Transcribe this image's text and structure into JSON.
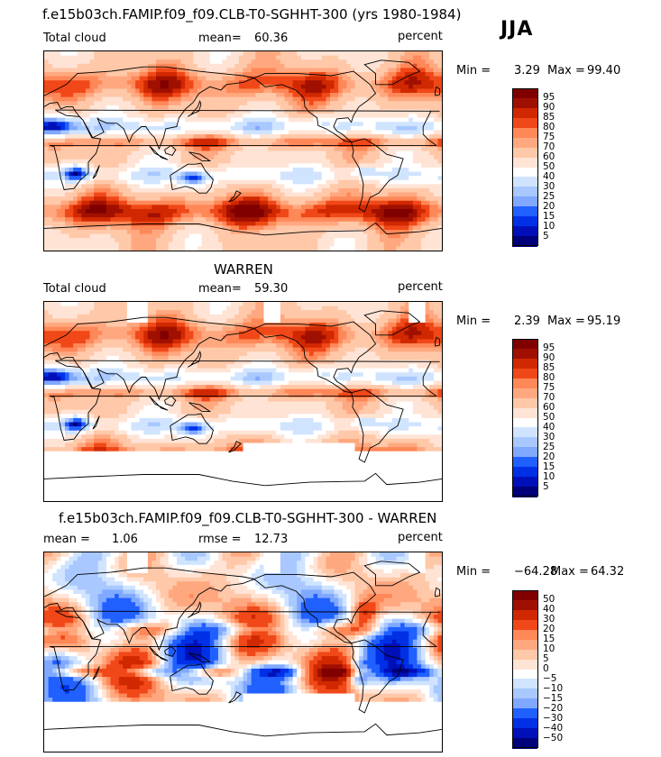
{
  "season": "JJA",
  "colors": {
    "abs_scale": [
      "#00007a",
      "#0010b8",
      "#0030e6",
      "#2060ff",
      "#5080ff",
      "#80a8ff",
      "#a8c8ff",
      "#d0e4ff",
      "#ffffff",
      "#ffe4d6",
      "#ffc8a8",
      "#ffa880",
      "#ff8858",
      "#ff6a38",
      "#f04818",
      "#d02800",
      "#a01000",
      "#800000"
    ],
    "diff_scale": [
      "#00007a",
      "#0010b8",
      "#0030e6",
      "#2060ff",
      "#5080ff",
      "#80a8ff",
      "#a8c8ff",
      "#d0e4ff",
      "#ffffff",
      "#ffe4d6",
      "#ffc8a8",
      "#ffa880",
      "#ff8858",
      "#ff6a38",
      "#f04818",
      "#d02800",
      "#a01000",
      "#800000"
    ]
  },
  "panels": [
    {
      "title": "f.e15b03ch.FAMIP.f09_f09.CLB-T0-SGHHT-300 (yrs 1980-1984)",
      "left_label": "Total cloud",
      "stat_label": "mean=",
      "stat_value": "60.36",
      "unit": "percent",
      "min_label": "Min =",
      "min_value": "3.29",
      "max_label": "Max =",
      "max_value": "99.40",
      "ticks": [
        "95",
        "90",
        "85",
        "80",
        "75",
        "70",
        "60",
        "50",
        "40",
        "30",
        "25",
        "20",
        "15",
        "10",
        "5"
      ],
      "missing_south": false
    },
    {
      "title": "WARREN",
      "left_label": "Total cloud",
      "stat_label": "mean=",
      "stat_value": "59.30",
      "unit": "percent",
      "min_label": "Min =",
      "min_value": "2.39",
      "max_label": "Max =",
      "max_value": "95.19",
      "ticks": [
        "95",
        "90",
        "85",
        "80",
        "75",
        "70",
        "60",
        "50",
        "40",
        "30",
        "25",
        "20",
        "15",
        "10",
        "5"
      ],
      "missing_south": true
    },
    {
      "title": "f.e15b03ch.FAMIP.f09_f09.CLB-T0-SGHHT-300 - WARREN",
      "left_label": "mean =",
      "left_value": "1.06",
      "stat_label": "rmse =",
      "stat_value": "12.73",
      "unit": "percent",
      "min_label": "Min =",
      "min_value": "−64.28",
      "max_label": "Max =",
      "max_value": "64.32",
      "ticks": [
        "50",
        "40",
        "30",
        "20",
        "15",
        "10",
        "5",
        "0",
        "−5",
        "−10",
        "−15",
        "−20",
        "−30",
        "−40",
        "−50"
      ],
      "missing_south": true
    }
  ]
}
